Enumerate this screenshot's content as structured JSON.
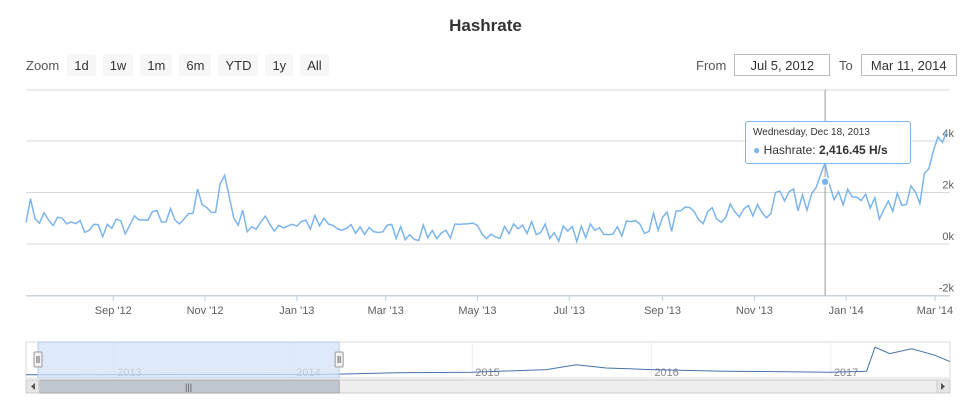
{
  "title": "Hashrate",
  "zoom": {
    "label": "Zoom",
    "buttons": [
      "1d",
      "1w",
      "1m",
      "6m",
      "YTD",
      "1y",
      "All"
    ]
  },
  "range": {
    "from_label": "From",
    "from_value": "Jul 5, 2012",
    "to_label": "To",
    "to_value": "Mar 11, 2014"
  },
  "tooltip": {
    "date": "Wednesday, Dec 18, 2013",
    "series": "Hashrate",
    "value": "2,416.45 H/s"
  },
  "colors": {
    "series": "#7cb5ec",
    "navigator_series": "#4572a7",
    "navigator_mask": "#d3e3f7",
    "grid": "#d8d8d8"
  },
  "chart_data": {
    "type": "line",
    "title": "Hashrate",
    "unit": "H/s",
    "x_range": [
      "2012-07-05",
      "2014-03-11"
    ],
    "x_ticks": [
      "Sep '12",
      "Nov '12",
      "Jan '13",
      "Mar '13",
      "May '13",
      "Jul '13",
      "Sep '13",
      "Nov '13",
      "Jan '14",
      "Mar '14"
    ],
    "y_ticks": [
      "-2k",
      "0k",
      "2k",
      "4k"
    ],
    "ylim": [
      -2000,
      4000
    ],
    "grid": true,
    "series": [
      {
        "name": "Hashrate",
        "x": [
          "2012-07-05",
          "2012-07-20",
          "2012-08-05",
          "2012-08-20",
          "2012-09-05",
          "2012-09-20",
          "2012-10-05",
          "2012-10-20",
          "2012-10-28",
          "2012-11-05",
          "2012-11-12",
          "2012-11-20",
          "2012-12-05",
          "2012-12-20",
          "2013-01-05",
          "2013-01-20",
          "2013-02-05",
          "2013-02-20",
          "2013-03-05",
          "2013-03-20",
          "2013-04-05",
          "2013-04-20",
          "2013-05-05",
          "2013-05-20",
          "2013-06-05",
          "2013-06-20",
          "2013-07-05",
          "2013-07-20",
          "2013-08-05",
          "2013-08-20",
          "2013-09-05",
          "2013-09-20",
          "2013-10-05",
          "2013-10-20",
          "2013-11-05",
          "2013-11-20",
          "2013-12-05",
          "2013-12-18",
          "2014-01-05",
          "2014-01-20",
          "2014-02-05",
          "2014-02-15",
          "2014-02-25",
          "2014-03-05",
          "2014-03-11"
        ],
        "values": [
          1400,
          900,
          700,
          600,
          650,
          800,
          1000,
          1200,
          1650,
          900,
          3050,
          1100,
          700,
          800,
          850,
          700,
          450,
          600,
          500,
          400,
          450,
          500,
          550,
          600,
          600,
          450,
          400,
          500,
          650,
          800,
          900,
          1000,
          1050,
          1200,
          1300,
          1500,
          1750,
          2416,
          1800,
          1500,
          1700,
          2100,
          2400,
          3600,
          3300
        ]
      }
    ],
    "tooltip_point": {
      "x": "2013-12-18",
      "y": 2416.45
    }
  },
  "navigator": {
    "labels": [
      "2013",
      "2014",
      "2015",
      "2016",
      "2017"
    ],
    "selection": [
      "2012-07-05",
      "2014-03-11"
    ],
    "scrollbar_grip": "|||"
  }
}
